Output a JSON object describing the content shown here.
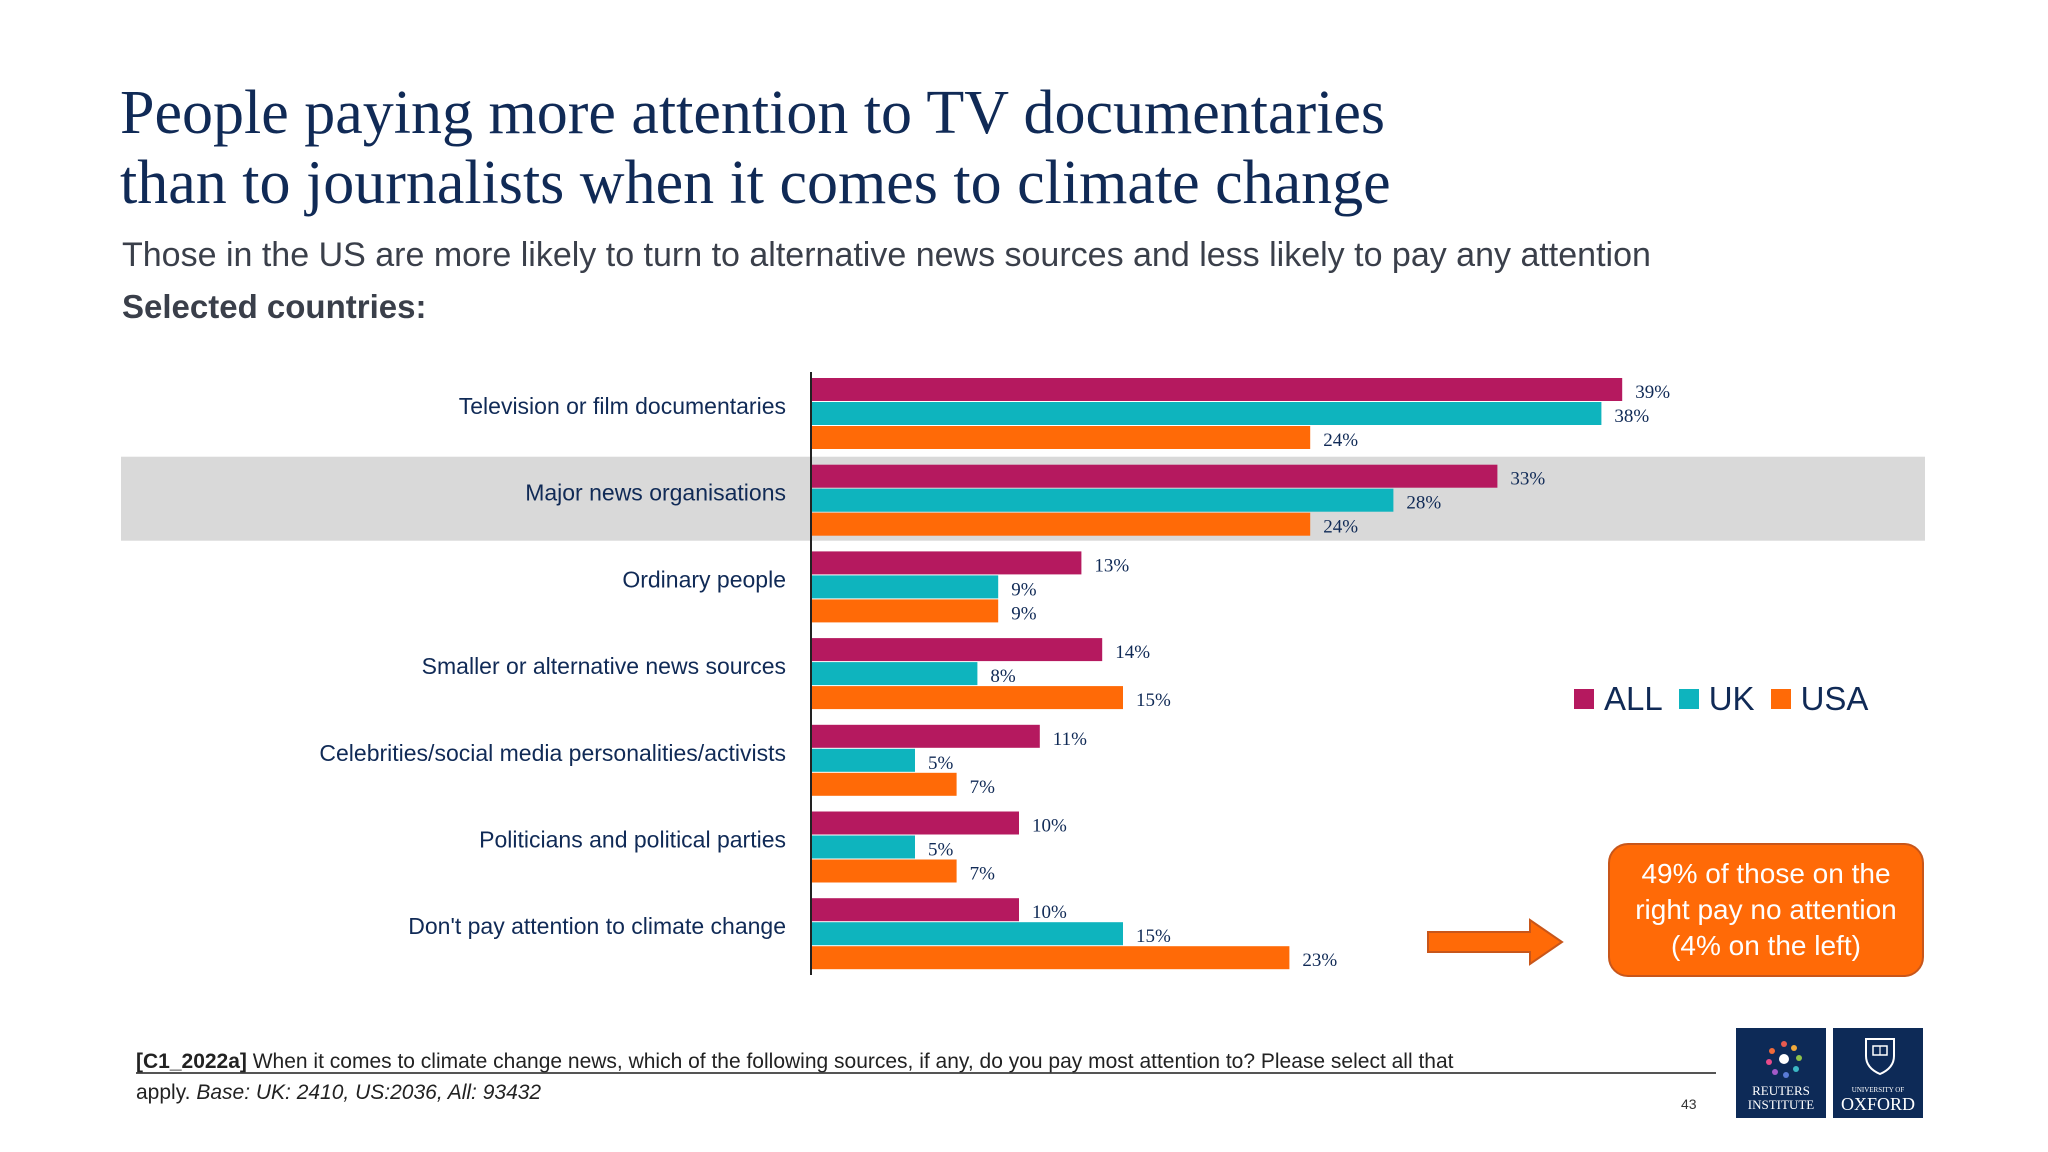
{
  "title": {
    "line1": "People paying more attention to TV documentaries",
    "line2": "than to journalists when it comes to climate change"
  },
  "subtitle": "Those in the US are more likely to turn to  alternative news sources and less likely to pay any attention",
  "selected_label": "Selected countries:",
  "legend": {
    "all": "ALL",
    "uk": "UK",
    "usa": "USA"
  },
  "colors": {
    "all": "#b5195f",
    "uk": "#0eb4be",
    "usa": "#ff6a07",
    "highlight_band": "#d9d9d9",
    "title": "#102a56"
  },
  "callout": {
    "line1": "49% of those on the",
    "line2": "right pay no attention",
    "line3": "(4% on the left)"
  },
  "footnote": {
    "code": "[C1_2022a]",
    "question": " When it comes to climate change news, which of the following sources, if any, do you pay most attention to? Please select all that apply. ",
    "base": "Base: UK: 2410, US:2036, All: 93432"
  },
  "page_number": "43",
  "logos": {
    "reuters_line1": "REUTERS",
    "reuters_line2": "INSTITUTE",
    "oxford_line1": "UNIVERSITY OF",
    "oxford_line2": "OXFORD"
  },
  "chart_data": {
    "type": "bar",
    "orientation": "horizontal",
    "categories": [
      "Television or film documentaries",
      "Major news organisations",
      "Ordinary people",
      "Smaller or alternative news sources",
      "Celebrities/social media personalities/activists",
      "Politicians and political parties",
      "Don't pay attention to climate change"
    ],
    "series": [
      {
        "name": "ALL",
        "values": [
          39,
          33,
          13,
          14,
          11,
          10,
          10
        ]
      },
      {
        "name": "UK",
        "values": [
          38,
          28,
          9,
          8,
          5,
          5,
          15
        ]
      },
      {
        "name": "USA",
        "values": [
          24,
          24,
          9,
          15,
          7,
          7,
          23
        ]
      }
    ],
    "value_suffix": "%",
    "highlighted_category": "Major news organisations",
    "legend_position": "right",
    "grid": false
  }
}
